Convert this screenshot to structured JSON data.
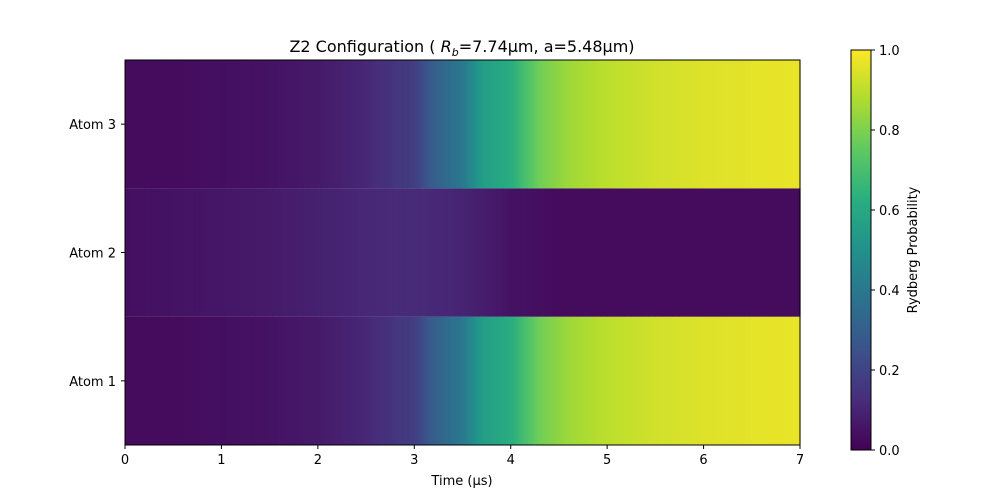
{
  "chart_data": {
    "type": "heatmap",
    "title_prefix": "Z2 Configuration ( ",
    "title_math_symbol": "R",
    "title_math_sub": "b",
    "title_suffix": "=7.74μm, a=5.48μm)",
    "xlabel": "Time (μs)",
    "x_ticks": [
      "0",
      "1",
      "2",
      "3",
      "4",
      "5",
      "6",
      "7"
    ],
    "xlim": [
      0,
      7
    ],
    "rows": [
      "Atom 1",
      "Atom 2",
      "Atom 3"
    ],
    "colorbar": {
      "label": "Rydberg Probability",
      "range": [
        0.0,
        1.0
      ],
      "ticks": [
        "0.0",
        "0.2",
        "0.4",
        "0.6",
        "0.8",
        "1.0"
      ],
      "colormap": "viridis"
    },
    "series": [
      {
        "name": "Atom 1",
        "t": [
          0,
          0.5,
          1.0,
          1.5,
          2.0,
          2.5,
          3.0,
          3.2,
          3.5,
          3.7,
          4.0,
          4.3,
          4.6,
          5.0,
          5.5,
          6.0,
          6.5,
          7.0
        ],
        "p": [
          0.03,
          0.03,
          0.04,
          0.05,
          0.07,
          0.11,
          0.18,
          0.3,
          0.4,
          0.55,
          0.62,
          0.78,
          0.85,
          0.9,
          0.93,
          0.95,
          0.96,
          0.97
        ]
      },
      {
        "name": "Atom 2",
        "t": [
          0,
          0.5,
          1.0,
          1.5,
          2.0,
          2.5,
          3.0,
          3.5,
          4.0,
          4.5,
          5.0,
          5.5,
          6.0,
          6.5,
          7.0
        ],
        "p": [
          0.04,
          0.05,
          0.06,
          0.07,
          0.09,
          0.11,
          0.12,
          0.1,
          0.05,
          0.03,
          0.03,
          0.03,
          0.03,
          0.03,
          0.03
        ]
      },
      {
        "name": "Atom 3",
        "t": [
          0,
          0.5,
          1.0,
          1.5,
          2.0,
          2.5,
          3.0,
          3.2,
          3.5,
          3.7,
          4.0,
          4.3,
          4.6,
          5.0,
          5.5,
          6.0,
          6.5,
          7.0
        ],
        "p": [
          0.03,
          0.03,
          0.04,
          0.05,
          0.07,
          0.11,
          0.18,
          0.3,
          0.4,
          0.55,
          0.62,
          0.78,
          0.85,
          0.9,
          0.93,
          0.95,
          0.96,
          0.97
        ]
      }
    ]
  }
}
